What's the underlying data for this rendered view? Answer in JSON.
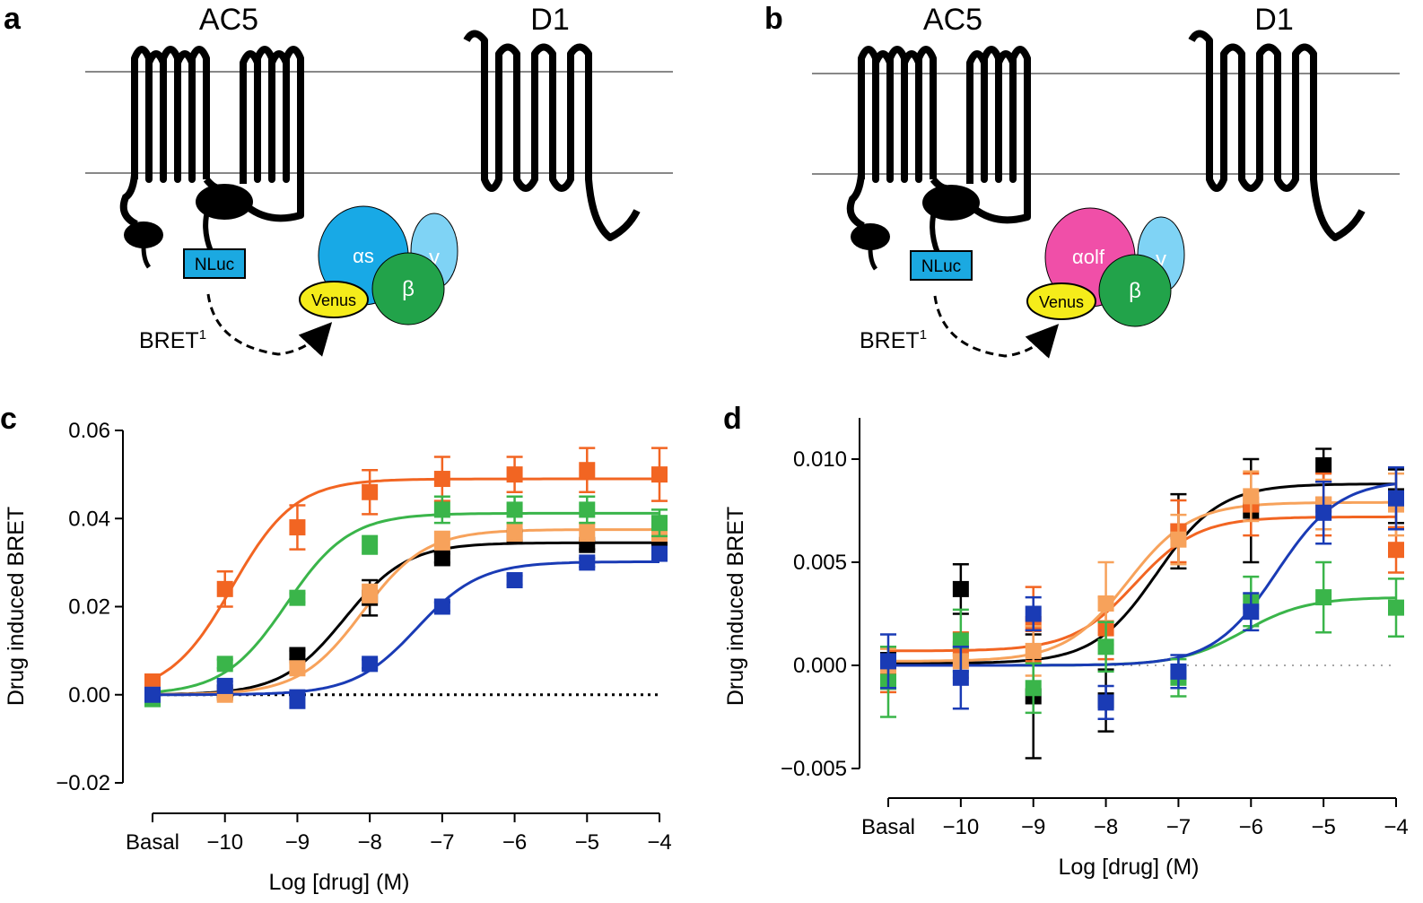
{
  "panels": {
    "a": {
      "letter": "a",
      "ac_label": "AC5",
      "d1_label": "D1",
      "nluc": "NLuc",
      "venus": "Venus",
      "alpha": "αs",
      "beta": "β",
      "gamma": "γ",
      "bret": "BRET",
      "bret_sup": "1"
    },
    "b": {
      "letter": "b",
      "ac_label": "AC5",
      "d1_label": "D1",
      "nluc": "NLuc",
      "venus": "Venus",
      "alpha": "αolf",
      "beta": "β",
      "gamma": "γ",
      "bret": "BRET",
      "bret_sup": "1"
    }
  },
  "colors": {
    "black": "#000000",
    "orange": "#f26522",
    "light_orange": "#f7a25b",
    "green": "#3ab54a",
    "blue": "#1a3bb5",
    "alpha_s": "#18a9e6",
    "alpha_olf": "#f04fa8",
    "beta": "#22a34a",
    "gamma": "#7fd3f5",
    "venus": "#f5ec1a",
    "nluc": "#1ba9e1"
  },
  "chart_data": [
    {
      "panel": "c",
      "letter": "c",
      "type": "line",
      "xlabel": "Log [drug] (M)",
      "ylabel": "Drug induced BRET",
      "x_tick_values": [
        "basal",
        -10,
        -9,
        -8,
        -7,
        -6,
        -5,
        -4
      ],
      "x_tick_labels": [
        "Basal",
        "−10",
        "−9",
        "−8",
        "−7",
        "−6",
        "−5",
        "−4"
      ],
      "ylim": [
        -0.02,
        0.06
      ],
      "y_tick_values": [
        -0.02,
        0.0,
        0.02,
        0.04,
        0.06
      ],
      "y_tick_labels": [
        "−0.02",
        "0.00",
        "0.02",
        "0.04",
        "0.06"
      ],
      "baseline": 0.0,
      "series": [
        {
          "name": "black",
          "color": "#000000",
          "x": [
            -11,
            -10,
            -9,
            -8,
            -7,
            -6,
            -5,
            -4
          ],
          "y": [
            0.0,
            0.0005,
            0.009,
            0.022,
            0.031,
            0.036,
            0.034,
            0.034
          ],
          "err": [
            0.001,
            0.001,
            0.001,
            0.004,
            0.001,
            0.001,
            0.001,
            0.002
          ],
          "fit": {
            "bottom": 0.0,
            "top": 0.0345,
            "logEC50": -8.35
          }
        },
        {
          "name": "orange",
          "color": "#f26522",
          "x": [
            -11,
            -10,
            -9,
            -8,
            -7,
            -6,
            -5,
            -4
          ],
          "y": [
            0.003,
            0.024,
            0.038,
            0.046,
            0.049,
            0.05,
            0.051,
            0.05
          ],
          "err": [
            0.001,
            0.004,
            0.005,
            0.005,
            0.005,
            0.004,
            0.005,
            0.006
          ],
          "fit": {
            "bottom": 0.0,
            "top": 0.049,
            "logEC50": -9.9
          }
        },
        {
          "name": "light orange",
          "color": "#f7a25b",
          "x": [
            -11,
            -10,
            -9,
            -8,
            -7,
            -6,
            -5,
            -4
          ],
          "y": [
            0.0,
            0.0,
            0.006,
            0.023,
            0.035,
            0.037,
            0.037,
            0.037
          ],
          "err": [
            0.001,
            0.001,
            0.001,
            0.002,
            0.002,
            0.002,
            0.002,
            0.002
          ],
          "fit": {
            "bottom": 0.0,
            "top": 0.0375,
            "logEC50": -8.1
          }
        },
        {
          "name": "green",
          "color": "#3ab54a",
          "x": [
            -11,
            -10,
            -9,
            -8,
            -7,
            -6,
            -5,
            -4
          ],
          "y": [
            -0.001,
            0.007,
            0.022,
            0.034,
            0.042,
            0.042,
            0.042,
            0.039
          ],
          "err": [
            0.001,
            0.001,
            0.001,
            0.002,
            0.003,
            0.003,
            0.003,
            0.003
          ],
          "fit": {
            "bottom": 0.0,
            "top": 0.0412,
            "logEC50": -9.15
          }
        },
        {
          "name": "blue",
          "color": "#1a3bb5",
          "x": [
            -11,
            -10,
            -9,
            -8,
            -7,
            -6,
            -5,
            -4
          ],
          "y": [
            0.0,
            0.002,
            -0.001,
            0.007,
            0.02,
            0.026,
            0.03,
            0.032
          ],
          "err": [
            0.001,
            0.001,
            0.002,
            0.001,
            0.001,
            0.001,
            0.001,
            0.001
          ],
          "fit": {
            "bottom": 0.0,
            "top": 0.0302,
            "logEC50": -7.35
          }
        }
      ]
    },
    {
      "panel": "d",
      "letter": "d",
      "type": "line",
      "xlabel": "Log [drug] (M)",
      "ylabel": "Drug induced BRET",
      "x_tick_values": [
        "basal",
        -10,
        -9,
        -8,
        -7,
        -6,
        -5,
        -4
      ],
      "x_tick_labels": [
        "Basal",
        "−10",
        "−9",
        "−8",
        "−7",
        "−6",
        "−5",
        "−4"
      ],
      "ylim": [
        -0.005,
        0.012
      ],
      "y_tick_values": [
        -0.005,
        0.0,
        0.005,
        0.01
      ],
      "y_tick_labels": [
        "−0.005",
        "0.000",
        "0.005",
        "0.010"
      ],
      "baseline": 0.0,
      "series": [
        {
          "name": "black",
          "color": "#000000",
          "x": [
            -11,
            -10,
            -9,
            -8,
            -7,
            -6,
            -5,
            -4
          ],
          "y": [
            0.0,
            0.0037,
            -0.0015,
            -0.0017,
            0.0065,
            0.0075,
            0.0097,
            0.0082
          ],
          "err": [
            0.0006,
            0.0012,
            0.003,
            0.0015,
            0.0018,
            0.0025,
            0.0008,
            0.0013
          ],
          "fit": {
            "bottom": 0.0001,
            "top": 0.0088,
            "logEC50": -7.3
          }
        },
        {
          "name": "orange",
          "color": "#f26522",
          "x": [
            -11,
            -10,
            -9,
            -8,
            -7,
            -6,
            -5,
            -4
          ],
          "y": [
            -0.0005,
            0.0008,
            0.002,
            0.0018,
            0.0065,
            0.0078,
            0.0078,
            0.0056
          ],
          "err": [
            0.0008,
            0.0008,
            0.0018,
            0.0015,
            0.0015,
            0.0015,
            0.0015,
            0.0011
          ],
          "fit": {
            "bottom": 0.0007,
            "top": 0.0072,
            "logEC50": -7.6
          }
        },
        {
          "name": "light orange",
          "color": "#f7a25b",
          "x": [
            -11,
            -10,
            -9,
            -8,
            -7,
            -6,
            -5,
            -4
          ],
          "y": [
            0.0,
            0.0002,
            0.0007,
            0.003,
            0.0061,
            0.0082,
            0.0078,
            0.0078
          ],
          "err": [
            0.0008,
            0.0008,
            0.0012,
            0.002,
            0.0012,
            0.0012,
            0.0012,
            0.0015
          ],
          "fit": {
            "bottom": 0.0002,
            "top": 0.0079,
            "logEC50": -7.7
          }
        },
        {
          "name": "green",
          "color": "#3ab54a",
          "x": [
            -11,
            -10,
            -9,
            -8,
            -7,
            -6,
            -5,
            -4
          ],
          "y": [
            -0.0008,
            0.0012,
            -0.0011,
            0.0009,
            -0.0006,
            0.0031,
            0.0033,
            0.0028
          ],
          "err": [
            0.0017,
            0.0015,
            0.0012,
            0.0012,
            0.0009,
            0.0012,
            0.0017,
            0.0014
          ],
          "fit": {
            "bottom": 0.0,
            "top": 0.0033,
            "logEC50": -6.1
          }
        },
        {
          "name": "blue",
          "color": "#1a3bb5",
          "x": [
            -11,
            -10,
            -9,
            -8,
            -7,
            -6,
            -5,
            -4
          ],
          "y": [
            0.0002,
            -0.0006,
            0.0025,
            -0.0018,
            -0.0003,
            0.0026,
            0.0074,
            0.0081
          ],
          "err": [
            0.0013,
            0.0015,
            0.0008,
            0.0008,
            0.0008,
            0.0009,
            0.0015,
            0.0015
          ],
          "fit": {
            "bottom": 0.0,
            "top": 0.009,
            "logEC50": -5.65
          }
        }
      ]
    }
  ]
}
